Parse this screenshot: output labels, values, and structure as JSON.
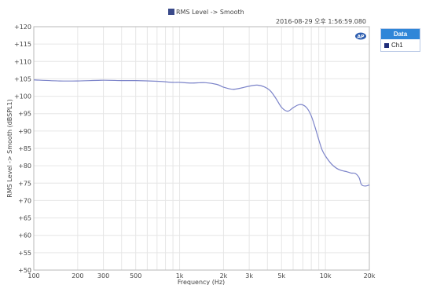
{
  "title": "RMS Level -> Smooth",
  "timestamp": "2016-08-29 오후 1:56:59.080",
  "chart_data": {
    "type": "line",
    "title": "RMS Level -> Smooth",
    "xlabel": "Frequency (Hz)",
    "ylabel": "RMS Level -> Smooth (dBSPL1)",
    "xscale": "log",
    "xlim": [
      100,
      20000
    ],
    "ylim": [
      50,
      120
    ],
    "xticks": [
      100,
      200,
      300,
      500,
      1000,
      2000,
      3000,
      5000,
      10000,
      20000
    ],
    "xtick_labels": [
      "100",
      "200",
      "300",
      "500",
      "1k",
      "2k",
      "3k",
      "5k",
      "10k",
      "20k"
    ],
    "yticks": [
      50,
      55,
      60,
      65,
      70,
      75,
      80,
      85,
      90,
      95,
      100,
      105,
      110,
      115,
      120
    ],
    "ytick_labels": [
      "+50",
      "+55",
      "+60",
      "+65",
      "+70",
      "+75",
      "+80",
      "+85",
      "+90",
      "+95",
      "+100",
      "+105",
      "+110",
      "+115",
      "+120"
    ],
    "grid": true,
    "legend": {
      "title": "Data",
      "position": "right"
    },
    "series": [
      {
        "name": "Ch1",
        "color": "#7b83c9",
        "x": [
          100,
          150,
          200,
          300,
          400,
          500,
          700,
          900,
          1000,
          1200,
          1500,
          1800,
          2000,
          2300,
          2600,
          3000,
          3400,
          3800,
          4200,
          4600,
          5000,
          5500,
          6000,
          6500,
          7000,
          7500,
          8000,
          8500,
          9000,
          9500,
          10000,
          11000,
          12000,
          13000,
          14000,
          15000,
          16000,
          17000,
          17500,
          18000,
          19000,
          20000
        ],
        "y": [
          104.7,
          104.4,
          104.4,
          104.6,
          104.5,
          104.5,
          104.3,
          104.0,
          104.0,
          103.8,
          103.9,
          103.4,
          102.6,
          102.0,
          102.3,
          102.9,
          103.2,
          102.7,
          101.5,
          99.2,
          96.8,
          95.7,
          96.7,
          97.5,
          97.5,
          96.5,
          94.3,
          91.0,
          87.5,
          84.5,
          82.8,
          80.5,
          79.2,
          78.6,
          78.3,
          77.9,
          77.8,
          76.6,
          74.9,
          74.3,
          74.2,
          74.5
        ]
      }
    ]
  }
}
